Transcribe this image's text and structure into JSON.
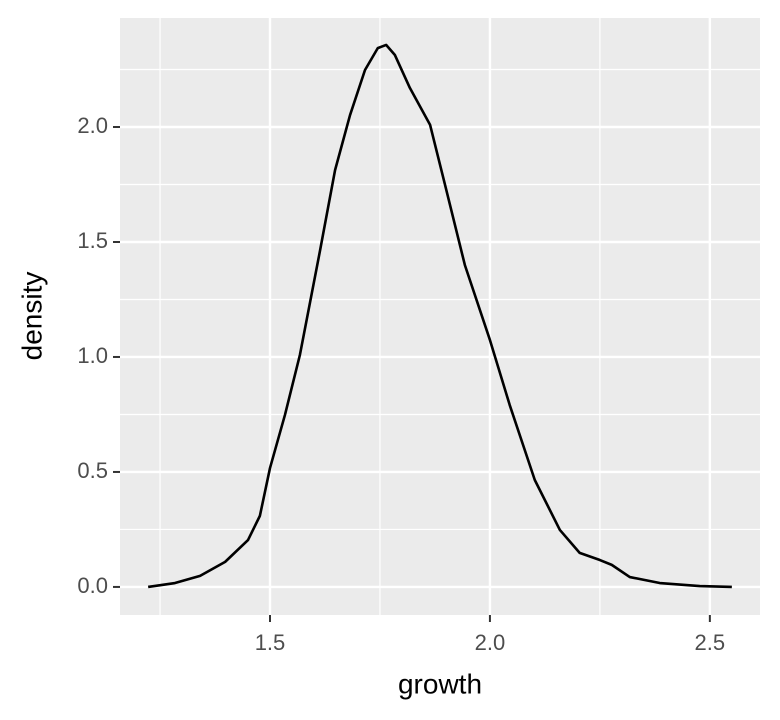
{
  "chart_data": {
    "type": "density",
    "x_label": "growth",
    "y_label": "density",
    "x": [
      1.223,
      1.284,
      1.341,
      1.398,
      1.45,
      1.477,
      1.5,
      1.534,
      1.568,
      1.614,
      1.648,
      1.682,
      1.716,
      1.745,
      1.764,
      1.784,
      1.818,
      1.864,
      1.898,
      1.943,
      2.0,
      2.045,
      2.102,
      2.159,
      2.204,
      2.25,
      2.277,
      2.318,
      2.386,
      2.477,
      2.55
    ],
    "values": [
      0,
      0.017,
      0.048,
      0.109,
      0.204,
      0.309,
      0.517,
      0.748,
      1.009,
      1.465,
      1.813,
      2.052,
      2.248,
      2.343,
      2.357,
      2.313,
      2.17,
      2.009,
      1.748,
      1.4,
      1.074,
      0.791,
      0.465,
      0.248,
      0.148,
      0.117,
      0.096,
      0.043,
      0.017,
      0.004,
      0
    ],
    "color": "#000000",
    "xlim": [
      1.159,
      2.614
    ],
    "ylim": [
      -0.122,
      2.474
    ],
    "xticks": [
      1.5,
      {
        "value": 2,
        "label": "2.0"
      },
      2.5
    ],
    "yticks": [
      {
        "value": 0,
        "label": "0.0"
      },
      0.5,
      {
        "value": 1,
        "label": "1.0"
      },
      1.5,
      {
        "value": 2,
        "label": "2.0"
      }
    ],
    "grid": true
  }
}
